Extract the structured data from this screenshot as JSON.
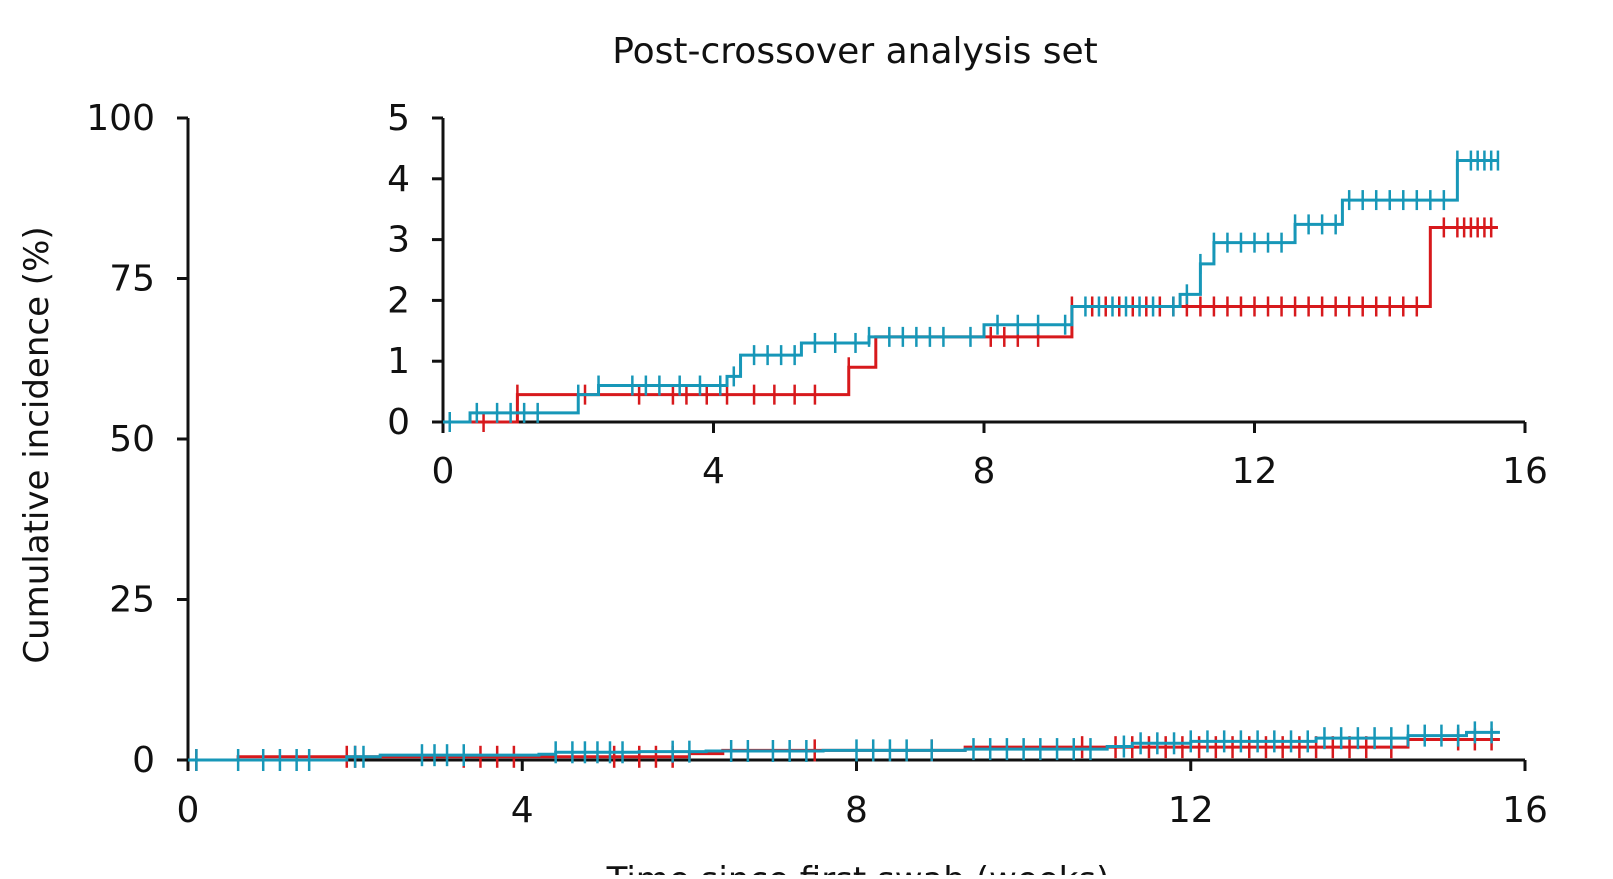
{
  "chart_data": [
    {
      "type": "line",
      "panel": "main",
      "title": "Post-crossover analysis set",
      "xlabel": "Time since first swab (weeks)",
      "ylabel": "Cumulative incidence (%)",
      "xlim": [
        0,
        16
      ],
      "ylim": [
        0,
        100
      ],
      "x_ticks": [
        "0",
        "4",
        "8",
        "12",
        "16"
      ],
      "y_ticks": [
        "0",
        "25",
        "50",
        "75",
        "100"
      ],
      "grid": false,
      "legend": "none",
      "series": [
        {
          "color": "#d7191c",
          "steps": [
            [
              0,
              0
            ],
            [
              0.6,
              0.5
            ],
            [
              6.0,
              1.0
            ],
            [
              6.4,
              1.5
            ],
            [
              9.3,
              2.0
            ],
            [
              14.6,
              3.2
            ],
            [
              15.7,
              3.2
            ]
          ],
          "censor_times": [
            0.1,
            1.9,
            2.0,
            3.3,
            3.5,
            3.7,
            3.9,
            5.1,
            5.4,
            5.6,
            5.8,
            7.5,
            8.9,
            10.7,
            11.1,
            11.3,
            11.5,
            11.7,
            11.9,
            12.1,
            12.3,
            12.5,
            12.7,
            12.9,
            13.1,
            13.3,
            13.5,
            13.7,
            13.9,
            14.1,
            14.4,
            15.2,
            15.4,
            15.6
          ]
        },
        {
          "color": "#1797b8",
          "steps": [
            [
              0,
              0
            ],
            [
              1.9,
              0.5
            ],
            [
              2.3,
              0.75
            ],
            [
              4.2,
              0.9
            ],
            [
              4.4,
              1.2
            ],
            [
              5.4,
              1.3
            ],
            [
              6.2,
              1.4
            ],
            [
              7.6,
              1.5
            ],
            [
              9.3,
              1.7
            ],
            [
              11.0,
              2.1
            ],
            [
              11.3,
              2.6
            ],
            [
              12.0,
              2.9
            ],
            [
              13.5,
              3.4
            ],
            [
              14.6,
              3.8
            ],
            [
              15.3,
              4.3
            ],
            [
              15.7,
              4.3
            ]
          ],
          "censor_times": [
            0.1,
            0.6,
            0.9,
            1.1,
            1.3,
            1.45,
            2.0,
            2.1,
            2.8,
            2.95,
            3.1,
            3.3,
            4.4,
            4.6,
            4.75,
            4.9,
            5.05,
            5.2,
            5.8,
            6.0,
            6.5,
            6.7,
            7.0,
            7.2,
            7.4,
            8.0,
            8.2,
            8.4,
            8.6,
            8.9,
            9.4,
            9.6,
            9.8,
            10.0,
            10.2,
            10.4,
            10.6,
            10.8,
            11.2,
            11.4,
            11.6,
            11.8,
            12.0,
            12.2,
            12.4,
            12.6,
            12.8,
            13.0,
            13.2,
            13.4,
            13.6,
            13.8,
            14.0,
            14.2,
            14.4,
            14.6,
            14.8,
            15.0,
            15.2,
            15.4,
            15.6
          ]
        }
      ]
    },
    {
      "type": "line",
      "panel": "inset",
      "xlim": [
        0,
        16
      ],
      "ylim": [
        0,
        5
      ],
      "x_ticks": [
        "0",
        "4",
        "8",
        "12",
        "16"
      ],
      "y_ticks": [
        "0",
        "1",
        "2",
        "3",
        "4",
        "5"
      ],
      "grid": false,
      "legend": "none",
      "series": [
        {
          "color": "#d7191c",
          "steps": [
            [
              0,
              0
            ],
            [
              0.6,
              0
            ],
            [
              1.1,
              0.45
            ],
            [
              6.0,
              0.9
            ],
            [
              6.4,
              1.4
            ],
            [
              9.3,
              1.9
            ],
            [
              14.6,
              3.2
            ],
            [
              15.6,
              3.2
            ]
          ],
          "censor_times": [
            0.6,
            1.1,
            2.1,
            2.9,
            3.4,
            3.6,
            3.9,
            4.2,
            4.6,
            4.9,
            5.2,
            5.5,
            6.0,
            8.1,
            8.3,
            8.5,
            8.8,
            9.3,
            9.6,
            9.8,
            10.0,
            10.2,
            10.4,
            10.6,
            10.8,
            11.0,
            11.2,
            11.4,
            11.6,
            11.8,
            12.0,
            12.2,
            12.4,
            12.6,
            12.8,
            13.0,
            13.2,
            13.4,
            13.6,
            13.8,
            14.0,
            14.2,
            14.4,
            14.8,
            15.0,
            15.1,
            15.2,
            15.3,
            15.4,
            15.5
          ]
        },
        {
          "color": "#1797b8",
          "steps": [
            [
              0,
              0
            ],
            [
              0.4,
              0.15
            ],
            [
              2.0,
              0.45
            ],
            [
              2.3,
              0.6
            ],
            [
              4.2,
              0.75
            ],
            [
              4.4,
              1.1
            ],
            [
              5.3,
              1.3
            ],
            [
              6.3,
              1.4
            ],
            [
              8.0,
              1.6
            ],
            [
              9.3,
              1.9
            ],
            [
              10.9,
              2.1
            ],
            [
              11.2,
              2.6
            ],
            [
              11.4,
              2.95
            ],
            [
              12.6,
              3.25
            ],
            [
              13.3,
              3.65
            ],
            [
              15.0,
              4.3
            ],
            [
              15.6,
              4.3
            ]
          ],
          "censor_times": [
            0.1,
            0.5,
            0.8,
            1.0,
            1.2,
            1.4,
            2.0,
            2.3,
            2.8,
            3.0,
            3.2,
            3.5,
            3.8,
            4.1,
            4.3,
            4.6,
            4.8,
            5.0,
            5.2,
            5.5,
            5.8,
            6.1,
            6.3,
            6.6,
            6.8,
            7.0,
            7.2,
            7.4,
            7.8,
            8.2,
            8.5,
            8.8,
            9.2,
            9.5,
            9.7,
            9.9,
            10.1,
            10.3,
            10.5,
            10.8,
            11.0,
            11.2,
            11.4,
            11.6,
            11.8,
            12.0,
            12.2,
            12.4,
            12.6,
            12.8,
            13.0,
            13.2,
            13.4,
            13.6,
            13.8,
            14.0,
            14.2,
            14.4,
            14.6,
            14.8,
            15.0,
            15.2,
            15.3,
            15.4,
            15.5,
            15.6
          ]
        }
      ]
    }
  ]
}
